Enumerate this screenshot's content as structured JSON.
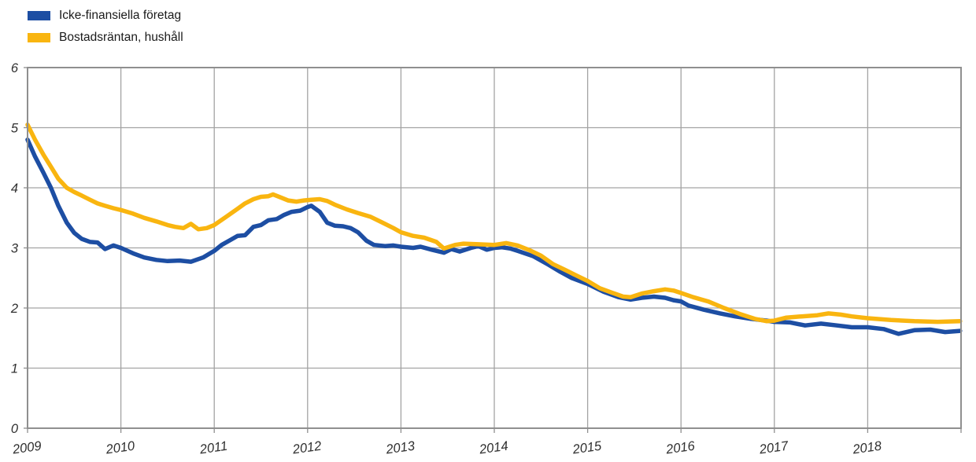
{
  "legend": {
    "items": [
      {
        "label": "Icke-finansiella företag",
        "color": "#1d4ea3"
      },
      {
        "label": "Bostadsräntan, hushåll",
        "color": "#f9b510"
      }
    ]
  },
  "chart_data": {
    "type": "line",
    "title": "",
    "xlabel": "",
    "ylabel": "",
    "ylim": [
      0,
      6
    ],
    "xlim": [
      2009,
      2019.05
    ],
    "grid": true,
    "legend_position": "top-left",
    "y_ticks": [
      "0",
      "1",
      "2",
      "3",
      "4",
      "5",
      "6"
    ],
    "x_ticks": [
      "2009",
      "2010",
      "2011",
      "2012",
      "2013",
      "2014",
      "2015",
      "2016",
      "2017",
      "2018"
    ],
    "colors": {
      "grid": "#a3a3a3",
      "frame": "#8f8f8f",
      "tick_text": "#303030",
      "background": "#ffffff"
    },
    "series": [
      {
        "name": "Icke-finansiella företag",
        "color": "#1d4ea3",
        "points": [
          [
            2009.0,
            4.8
          ],
          [
            2009.08,
            4.52
          ],
          [
            2009.17,
            4.25
          ],
          [
            2009.25,
            4.0
          ],
          [
            2009.33,
            3.7
          ],
          [
            2009.42,
            3.42
          ],
          [
            2009.5,
            3.25
          ],
          [
            2009.58,
            3.15
          ],
          [
            2009.67,
            3.1
          ],
          [
            2009.75,
            3.09
          ],
          [
            2009.83,
            2.98
          ],
          [
            2009.92,
            3.04
          ],
          [
            2010.0,
            3.0
          ],
          [
            2010.13,
            2.91
          ],
          [
            2010.25,
            2.84
          ],
          [
            2010.38,
            2.8
          ],
          [
            2010.5,
            2.78
          ],
          [
            2010.63,
            2.79
          ],
          [
            2010.75,
            2.77
          ],
          [
            2010.88,
            2.84
          ],
          [
            2011.0,
            2.95
          ],
          [
            2011.08,
            3.05
          ],
          [
            2011.17,
            3.13
          ],
          [
            2011.25,
            3.2
          ],
          [
            2011.33,
            3.21
          ],
          [
            2011.42,
            3.35
          ],
          [
            2011.5,
            3.38
          ],
          [
            2011.58,
            3.46
          ],
          [
            2011.67,
            3.48
          ],
          [
            2011.75,
            3.55
          ],
          [
            2011.83,
            3.6
          ],
          [
            2011.92,
            3.62
          ],
          [
            2012.0,
            3.68
          ],
          [
            2012.04,
            3.7
          ],
          [
            2012.13,
            3.6
          ],
          [
            2012.21,
            3.42
          ],
          [
            2012.29,
            3.37
          ],
          [
            2012.38,
            3.36
          ],
          [
            2012.46,
            3.33
          ],
          [
            2012.54,
            3.26
          ],
          [
            2012.63,
            3.12
          ],
          [
            2012.71,
            3.05
          ],
          [
            2012.83,
            3.03
          ],
          [
            2012.92,
            3.04
          ],
          [
            2013.0,
            3.02
          ],
          [
            2013.13,
            3.0
          ],
          [
            2013.21,
            3.02
          ],
          [
            2013.33,
            2.97
          ],
          [
            2013.46,
            2.92
          ],
          [
            2013.54,
            2.98
          ],
          [
            2013.63,
            2.94
          ],
          [
            2013.75,
            3.0
          ],
          [
            2013.83,
            3.03
          ],
          [
            2013.92,
            2.97
          ],
          [
            2014.0,
            3.0
          ],
          [
            2014.08,
            3.01
          ],
          [
            2014.17,
            2.99
          ],
          [
            2014.25,
            2.95
          ],
          [
            2014.42,
            2.86
          ],
          [
            2014.58,
            2.72
          ],
          [
            2014.71,
            2.6
          ],
          [
            2014.83,
            2.5
          ],
          [
            2015.0,
            2.4
          ],
          [
            2015.17,
            2.27
          ],
          [
            2015.33,
            2.18
          ],
          [
            2015.46,
            2.14
          ],
          [
            2015.58,
            2.17
          ],
          [
            2015.71,
            2.19
          ],
          [
            2015.83,
            2.17
          ],
          [
            2015.92,
            2.13
          ],
          [
            2016.0,
            2.11
          ],
          [
            2016.08,
            2.04
          ],
          [
            2016.25,
            1.97
          ],
          [
            2016.42,
            1.91
          ],
          [
            2016.58,
            1.86
          ],
          [
            2016.75,
            1.82
          ],
          [
            2016.92,
            1.79
          ],
          [
            2017.0,
            1.77
          ],
          [
            2017.17,
            1.76
          ],
          [
            2017.33,
            1.71
          ],
          [
            2017.5,
            1.74
          ],
          [
            2017.67,
            1.71
          ],
          [
            2017.83,
            1.68
          ],
          [
            2018.0,
            1.68
          ],
          [
            2018.17,
            1.65
          ],
          [
            2018.33,
            1.57
          ],
          [
            2018.5,
            1.63
          ],
          [
            2018.67,
            1.64
          ],
          [
            2018.83,
            1.6
          ],
          [
            2018.99,
            1.62
          ]
        ]
      },
      {
        "name": "Bostadsräntan, hushåll",
        "color": "#f9b510",
        "points": [
          [
            2009.0,
            5.05
          ],
          [
            2009.08,
            4.8
          ],
          [
            2009.17,
            4.55
          ],
          [
            2009.25,
            4.35
          ],
          [
            2009.33,
            4.15
          ],
          [
            2009.42,
            4.0
          ],
          [
            2009.5,
            3.93
          ],
          [
            2009.58,
            3.87
          ],
          [
            2009.67,
            3.8
          ],
          [
            2009.75,
            3.74
          ],
          [
            2009.83,
            3.7
          ],
          [
            2009.92,
            3.66
          ],
          [
            2010.0,
            3.63
          ],
          [
            2010.13,
            3.57
          ],
          [
            2010.25,
            3.5
          ],
          [
            2010.38,
            3.44
          ],
          [
            2010.5,
            3.38
          ],
          [
            2010.58,
            3.35
          ],
          [
            2010.67,
            3.33
          ],
          [
            2010.75,
            3.4
          ],
          [
            2010.83,
            3.31
          ],
          [
            2010.92,
            3.33
          ],
          [
            2011.0,
            3.38
          ],
          [
            2011.13,
            3.52
          ],
          [
            2011.25,
            3.65
          ],
          [
            2011.33,
            3.74
          ],
          [
            2011.42,
            3.81
          ],
          [
            2011.5,
            3.85
          ],
          [
            2011.58,
            3.86
          ],
          [
            2011.63,
            3.89
          ],
          [
            2011.71,
            3.84
          ],
          [
            2011.79,
            3.79
          ],
          [
            2011.88,
            3.77
          ],
          [
            2011.96,
            3.79
          ],
          [
            2012.04,
            3.8
          ],
          [
            2012.13,
            3.81
          ],
          [
            2012.21,
            3.78
          ],
          [
            2012.29,
            3.72
          ],
          [
            2012.42,
            3.64
          ],
          [
            2012.54,
            3.58
          ],
          [
            2012.67,
            3.52
          ],
          [
            2012.79,
            3.43
          ],
          [
            2012.92,
            3.33
          ],
          [
            2013.0,
            3.26
          ],
          [
            2013.13,
            3.2
          ],
          [
            2013.25,
            3.17
          ],
          [
            2013.38,
            3.1
          ],
          [
            2013.46,
            2.99
          ],
          [
            2013.58,
            3.05
          ],
          [
            2013.67,
            3.07
          ],
          [
            2013.83,
            3.06
          ],
          [
            2014.0,
            3.05
          ],
          [
            2014.13,
            3.08
          ],
          [
            2014.25,
            3.04
          ],
          [
            2014.38,
            2.96
          ],
          [
            2014.5,
            2.87
          ],
          [
            2014.63,
            2.73
          ],
          [
            2014.75,
            2.64
          ],
          [
            2014.88,
            2.54
          ],
          [
            2015.0,
            2.45
          ],
          [
            2015.13,
            2.33
          ],
          [
            2015.25,
            2.26
          ],
          [
            2015.38,
            2.19
          ],
          [
            2015.46,
            2.18
          ],
          [
            2015.58,
            2.24
          ],
          [
            2015.71,
            2.28
          ],
          [
            2015.83,
            2.31
          ],
          [
            2015.92,
            2.29
          ],
          [
            2016.0,
            2.25
          ],
          [
            2016.13,
            2.18
          ],
          [
            2016.29,
            2.11
          ],
          [
            2016.46,
            2.0
          ],
          [
            2016.63,
            1.9
          ],
          [
            2016.79,
            1.82
          ],
          [
            2016.92,
            1.78
          ],
          [
            2017.0,
            1.79
          ],
          [
            2017.13,
            1.84
          ],
          [
            2017.29,
            1.86
          ],
          [
            2017.46,
            1.88
          ],
          [
            2017.58,
            1.91
          ],
          [
            2017.71,
            1.89
          ],
          [
            2017.83,
            1.86
          ],
          [
            2018.0,
            1.83
          ],
          [
            2018.25,
            1.8
          ],
          [
            2018.5,
            1.78
          ],
          [
            2018.75,
            1.77
          ],
          [
            2018.99,
            1.78
          ]
        ]
      }
    ]
  }
}
